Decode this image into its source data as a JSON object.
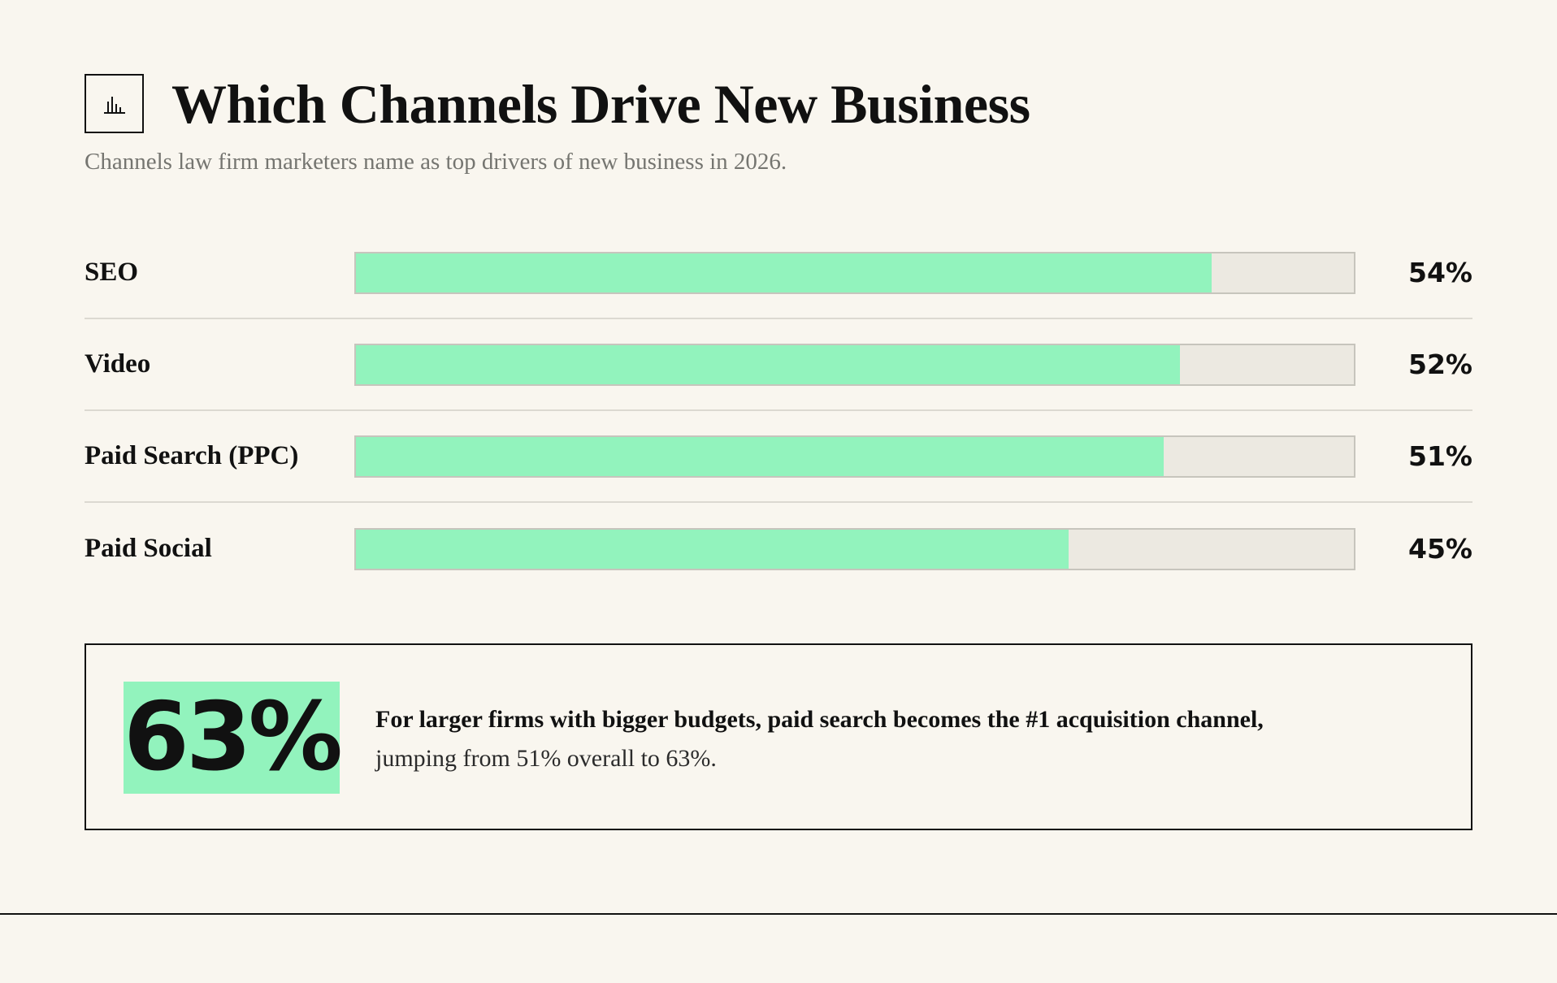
{
  "header": {
    "title": "Which Channels Drive New Business",
    "subtitle": "Channels law firm marketers name as top drivers of new business in 2026.",
    "icon": "bar-chart-icon"
  },
  "chart_data": {
    "type": "bar",
    "orientation": "horizontal",
    "categories": [
      "SEO",
      "Video",
      "Paid Search (PPC)",
      "Paid Social"
    ],
    "values": [
      54,
      52,
      51,
      45
    ],
    "value_labels": [
      "54%",
      "52%",
      "51%",
      "45%"
    ],
    "xlim": [
      0,
      63
    ],
    "colors": {
      "fill": "#92f3bd",
      "track": "#ece9e1"
    }
  },
  "callout": {
    "stat": "63%",
    "text_strong": "For larger firms with bigger budgets, paid search becomes the #1 acquisition channel,",
    "text_regular": "jumping from 51% overall to 63%."
  },
  "colors": {
    "background": "#f9f6ef",
    "accent": "#92f3bd",
    "text": "#111111",
    "muted": "#757570"
  }
}
